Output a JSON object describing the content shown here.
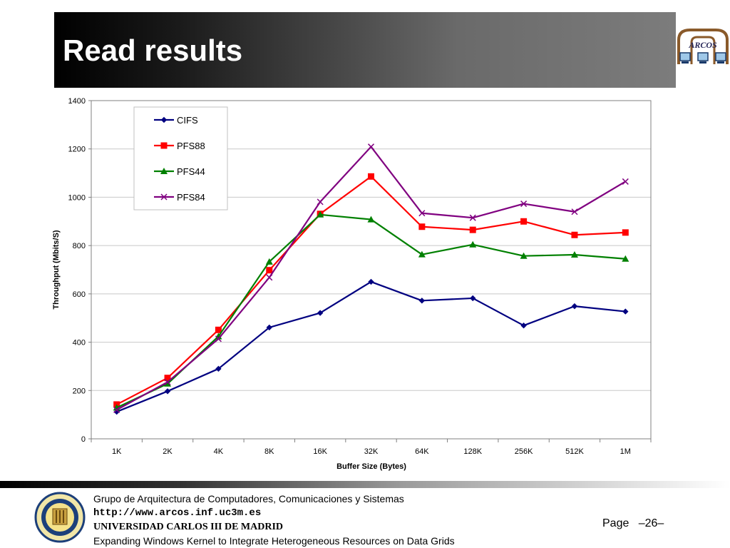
{
  "slide": {
    "title": "Read results"
  },
  "footer": {
    "group": "Grupo de Arquitectura de Computadores, Comunicaciones y Sistemas",
    "url": "http://www.arcos.inf.uc3m.es",
    "university": "UNIVERSIDAD CARLOS III DE MADRID",
    "project": "Expanding Windows Kernel to Integrate Heterogeneous Resources on Data Grids",
    "page_label": "Page",
    "page_number": "–26–"
  },
  "logo": {
    "text": "ARCOS"
  },
  "chart_data": {
    "type": "line",
    "title": "",
    "xlabel": "Buffer Size (Bytes)",
    "ylabel": "Throughput (Mbits/S)",
    "categories": [
      "1K",
      "2K",
      "4K",
      "8K",
      "16K",
      "32K",
      "64K",
      "128K",
      "256K",
      "512K",
      "1M"
    ],
    "ylim": [
      0,
      1400
    ],
    "yticks": [
      0,
      200,
      400,
      600,
      800,
      1000,
      1200,
      1400
    ],
    "grid": true,
    "legend_position": "top-left",
    "series": [
      {
        "name": "CIFS",
        "color": "#000080",
        "marker": "diamond",
        "values": [
          112,
          197,
          290,
          461,
          521,
          650,
          572,
          582,
          469,
          549,
          527
        ]
      },
      {
        "name": "PFS88",
        "color": "#ff0000",
        "marker": "square",
        "values": [
          142,
          252,
          451,
          698,
          931,
          1086,
          878,
          865,
          900,
          844,
          854
        ]
      },
      {
        "name": "PFS44",
        "color": "#008000",
        "marker": "triangle",
        "values": [
          129,
          228,
          424,
          733,
          928,
          908,
          763,
          804,
          757,
          762,
          745
        ]
      },
      {
        "name": "PFS84",
        "color": "#800080",
        "marker": "x",
        "values": [
          120,
          235,
          414,
          668,
          981,
          1209,
          934,
          915,
          973,
          940,
          1065
        ]
      }
    ]
  }
}
